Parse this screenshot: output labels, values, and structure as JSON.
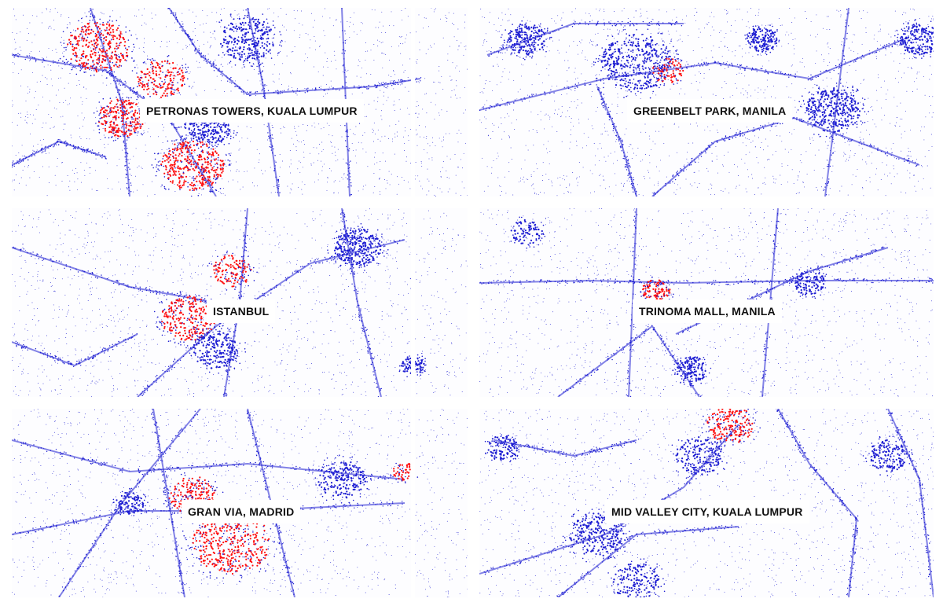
{
  "panels": [
    {
      "label": "PETRONAS TOWERS, KUALA LUMPUR"
    },
    {
      "label": "GREENBELT PARK, MANILA"
    },
    {
      "label": "ISTANBUL"
    },
    {
      "label": "TRINOMA MALL, MANILA"
    },
    {
      "label": "GRAN VIA, MADRID"
    },
    {
      "label": "MID VALLEY CITY, KUALA LUMPUR"
    }
  ],
  "colors": {
    "dot_primary": "#1e1ed2",
    "dot_hotspot": "#ff1010",
    "background": "#ffffff"
  }
}
